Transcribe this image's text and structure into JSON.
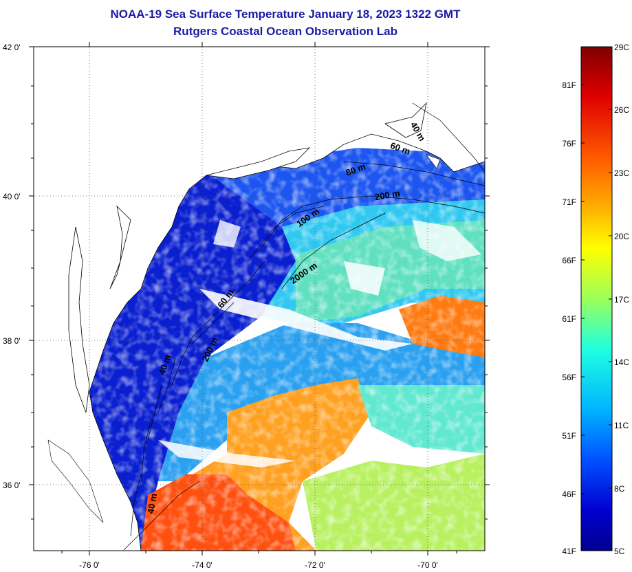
{
  "title": {
    "line1": "NOAA-19 Sea Surface Temperature January 18, 2023 1322 GMT",
    "line2": "Rutgers Coastal Ocean Observation Lab"
  },
  "map": {
    "lat_labels": [
      {
        "value": 42,
        "label": "42 0'"
      },
      {
        "value": 40,
        "label": "40 0'"
      },
      {
        "value": 38,
        "label": "38 0'"
      },
      {
        "value": 36,
        "label": "36 0'"
      }
    ],
    "lon_labels": [
      {
        "value": -76,
        "label": "-76 0'"
      },
      {
        "value": -74,
        "label": "-74 0'"
      },
      {
        "value": -72,
        "label": "-72 0'"
      },
      {
        "value": -70,
        "label": "-70 0'"
      }
    ],
    "lat_range": [
      35.0,
      42.0
    ],
    "lon_range": [
      -77.0,
      -69.0
    ],
    "grid": "dotted",
    "isobath_labels": [
      "40 m",
      "60 m",
      "80 m",
      "200 m",
      "100 m",
      "2000 m",
      "60 m",
      "200 m",
      "40 m",
      "40 m"
    ]
  },
  "colorbar": {
    "left_labels": [
      "81F",
      "76F",
      "71F",
      "66F",
      "61F",
      "56F",
      "51F",
      "46F",
      "41F"
    ],
    "right_labels": [
      "29C",
      "26C",
      "23C",
      "20C",
      "17C",
      "14C",
      "11C",
      "8C",
      "5C"
    ],
    "colors": [
      "#7f0000",
      "#e00000",
      "#ff5a00",
      "#ffb000",
      "#ffff00",
      "#9cff5a",
      "#20ffe0",
      "#00b4ff",
      "#0050ff",
      "#0000d0",
      "#00008f"
    ]
  },
  "colors": {
    "title": "#1a1aa6",
    "land": "#ffffff",
    "coast": "#000000"
  }
}
